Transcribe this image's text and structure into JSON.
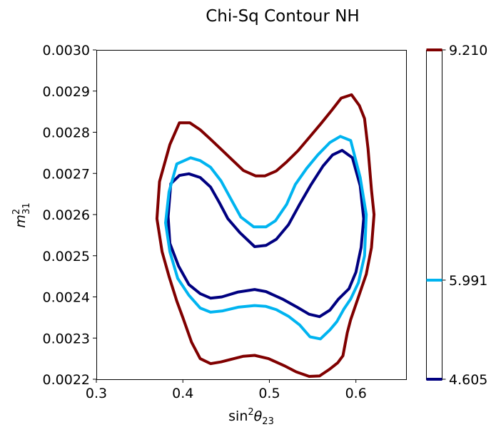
{
  "chart_data": {
    "type": "line",
    "title": "Chi-Sq Contour NH",
    "xlabel": {
      "base": "sin",
      "sup": "2",
      "theta": "θ",
      "sub": "23"
    },
    "ylabel": {
      "base": "m",
      "sup": "2",
      "sub": "31"
    },
    "xlim": [
      0.3,
      0.658
    ],
    "ylim": [
      0.0022,
      0.003
    ],
    "xticks": [
      0.3,
      0.4,
      0.5,
      0.6
    ],
    "xtick_labels": [
      "0.3",
      "0.4",
      "0.5",
      "0.6"
    ],
    "yticks": [
      0.0022,
      0.0023,
      0.0024,
      0.0025,
      0.0026,
      0.0027,
      0.0028,
      0.0029,
      0.003
    ],
    "ytick_labels": [
      "0.0022",
      "0.0023",
      "0.0024",
      "0.0025",
      "0.0026",
      "0.0027",
      "0.0028",
      "0.0029",
      "0.0030"
    ],
    "grid": false,
    "legend": "colorbar-right",
    "colorbar": {
      "levels": [
        {
          "value": 4.605,
          "label": "4.605",
          "color": "#000080"
        },
        {
          "value": 5.991,
          "label": "5.991",
          "color": "#00b4f0"
        },
        {
          "value": 9.21,
          "label": "9.210",
          "color": "#800000"
        }
      ]
    },
    "series": [
      {
        "level": "4.605",
        "color": "#000080",
        "points": [
          [
            0.383,
            0.002595
          ],
          [
            0.386,
            0.002675
          ],
          [
            0.396,
            0.002695
          ],
          [
            0.407,
            0.002699
          ],
          [
            0.42,
            0.00269
          ],
          [
            0.432,
            0.002667
          ],
          [
            0.442,
            0.00263
          ],
          [
            0.452,
            0.00259
          ],
          [
            0.466,
            0.002556
          ],
          [
            0.483,
            0.002522
          ],
          [
            0.496,
            0.002525
          ],
          [
            0.508,
            0.00254
          ],
          [
            0.522,
            0.002575
          ],
          [
            0.535,
            0.002625
          ],
          [
            0.548,
            0.002672
          ],
          [
            0.562,
            0.002718
          ],
          [
            0.573,
            0.002745
          ],
          [
            0.584,
            0.002756
          ],
          [
            0.596,
            0.002738
          ],
          [
            0.605,
            0.00267
          ],
          [
            0.609,
            0.00259
          ],
          [
            0.606,
            0.00252
          ],
          [
            0.6,
            0.00246
          ],
          [
            0.592,
            0.00242
          ],
          [
            0.58,
            0.002395
          ],
          [
            0.57,
            0.002368
          ],
          [
            0.558,
            0.002352
          ],
          [
            0.546,
            0.002358
          ],
          [
            0.532,
            0.002375
          ],
          [
            0.515,
            0.002395
          ],
          [
            0.496,
            0.002413
          ],
          [
            0.483,
            0.002418
          ],
          [
            0.464,
            0.002412
          ],
          [
            0.445,
            0.0024
          ],
          [
            0.432,
            0.002397
          ],
          [
            0.42,
            0.002408
          ],
          [
            0.407,
            0.00243
          ],
          [
            0.395,
            0.002475
          ],
          [
            0.385,
            0.00253
          ],
          [
            0.383,
            0.002595
          ]
        ]
      },
      {
        "level": "5.991",
        "color": "#00b4f0",
        "points": [
          [
            0.38,
            0.00258
          ],
          [
            0.384,
            0.002655
          ],
          [
            0.393,
            0.002723
          ],
          [
            0.409,
            0.002738
          ],
          [
            0.42,
            0.002731
          ],
          [
            0.432,
            0.002715
          ],
          [
            0.444,
            0.002682
          ],
          [
            0.456,
            0.002636
          ],
          [
            0.467,
            0.002594
          ],
          [
            0.482,
            0.00257
          ],
          [
            0.496,
            0.00257
          ],
          [
            0.507,
            0.002585
          ],
          [
            0.52,
            0.002625
          ],
          [
            0.53,
            0.002673
          ],
          [
            0.543,
            0.002712
          ],
          [
            0.556,
            0.002745
          ],
          [
            0.57,
            0.002775
          ],
          [
            0.582,
            0.00279
          ],
          [
            0.594,
            0.00278
          ],
          [
            0.605,
            0.00269
          ],
          [
            0.612,
            0.0026
          ],
          [
            0.61,
            0.0025
          ],
          [
            0.603,
            0.002435
          ],
          [
            0.594,
            0.002395
          ],
          [
            0.586,
            0.00237
          ],
          [
            0.578,
            0.00234
          ],
          [
            0.57,
            0.00232
          ],
          [
            0.559,
            0.002298
          ],
          [
            0.547,
            0.002303
          ],
          [
            0.535,
            0.002332
          ],
          [
            0.522,
            0.002353
          ],
          [
            0.508,
            0.002369
          ],
          [
            0.496,
            0.002377
          ],
          [
            0.483,
            0.002379
          ],
          [
            0.464,
            0.002375
          ],
          [
            0.446,
            0.002366
          ],
          [
            0.432,
            0.002363
          ],
          [
            0.42,
            0.002373
          ],
          [
            0.407,
            0.002404
          ],
          [
            0.394,
            0.002445
          ],
          [
            0.385,
            0.00251
          ],
          [
            0.38,
            0.00258
          ]
        ]
      },
      {
        "level": "9.210",
        "color": "#800000",
        "points": [
          [
            0.37,
            0.00259
          ],
          [
            0.373,
            0.00268
          ],
          [
            0.385,
            0.00277
          ],
          [
            0.396,
            0.002823
          ],
          [
            0.408,
            0.002823
          ],
          [
            0.42,
            0.002806
          ],
          [
            0.432,
            0.002783
          ],
          [
            0.445,
            0.002757
          ],
          [
            0.457,
            0.002733
          ],
          [
            0.47,
            0.002707
          ],
          [
            0.484,
            0.002694
          ],
          [
            0.495,
            0.002694
          ],
          [
            0.508,
            0.002706
          ],
          [
            0.52,
            0.002728
          ],
          [
            0.533,
            0.002755
          ],
          [
            0.546,
            0.002787
          ],
          [
            0.56,
            0.002822
          ],
          [
            0.572,
            0.002853
          ],
          [
            0.583,
            0.002883
          ],
          [
            0.595,
            0.002891
          ],
          [
            0.604,
            0.002865
          ],
          [
            0.61,
            0.002833
          ],
          [
            0.614,
            0.00276
          ],
          [
            0.618,
            0.00266
          ],
          [
            0.621,
            0.0026
          ],
          [
            0.618,
            0.00252
          ],
          [
            0.612,
            0.002455
          ],
          [
            0.603,
            0.0024
          ],
          [
            0.594,
            0.002345
          ],
          [
            0.59,
            0.002313
          ],
          [
            0.585,
            0.002257
          ],
          [
            0.579,
            0.00224
          ],
          [
            0.57,
            0.002225
          ],
          [
            0.558,
            0.002208
          ],
          [
            0.546,
            0.002207
          ],
          [
            0.531,
            0.002218
          ],
          [
            0.517,
            0.002233
          ],
          [
            0.499,
            0.00225
          ],
          [
            0.483,
            0.002258
          ],
          [
            0.47,
            0.002256
          ],
          [
            0.457,
            0.002249
          ],
          [
            0.444,
            0.002242
          ],
          [
            0.432,
            0.002238
          ],
          [
            0.42,
            0.00225
          ],
          [
            0.41,
            0.00229
          ],
          [
            0.4,
            0.00235
          ],
          [
            0.393,
            0.00239
          ],
          [
            0.384,
            0.00245
          ],
          [
            0.376,
            0.00251
          ],
          [
            0.37,
            0.00259
          ]
        ]
      }
    ]
  }
}
